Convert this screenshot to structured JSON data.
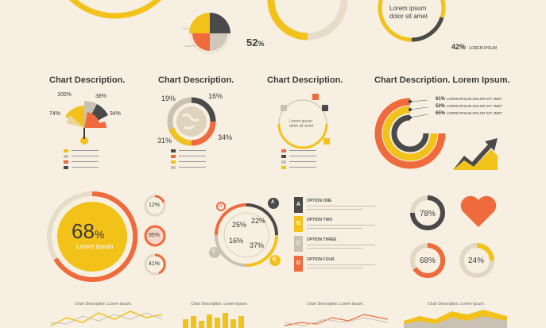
{
  "colors": {
    "yellow": "#f2c21a",
    "orange": "#ef6a3c",
    "grey": "#4a4a4a",
    "lightgrey": "#c9c1b4",
    "cream": "#f6efe2",
    "beige": "#e6d8bf"
  },
  "top": {
    "pct_52": "52",
    "pct_42": "42",
    "lorem_title": "Lorem ipsum",
    "lorem_sub": "dolor sit amet",
    "lorem_label": "LOREM IPSUM",
    "pct_suffix": "%"
  },
  "sections": [
    {
      "title": "Chart Description."
    },
    {
      "title": "Chart Description."
    },
    {
      "title": "Chart Description."
    },
    {
      "title": "Chart Description. Lorem Ipsum."
    }
  ],
  "fan": {
    "labels": [
      "100%",
      "38%",
      "74%",
      "34%"
    ]
  },
  "donut2": {
    "labels": [
      "19%",
      "16%",
      "31%",
      "34%"
    ]
  },
  "card3": {
    "line1": "Lorem ipsum",
    "line2": "dolor sit amet"
  },
  "rings4": {
    "labels": [
      "61%",
      "52%",
      "65%"
    ],
    "text": "LOREM IPSUM DOLOR SIT AMET"
  },
  "big": {
    "value": "68",
    "suffix": "%",
    "sub": "Lorem ipsum"
  },
  "smalls": [
    "12%",
    "95%",
    "41%"
  ],
  "wheel": {
    "labels": [
      "25%",
      "22%",
      "16%",
      "37%"
    ],
    "letters": [
      "A",
      "B",
      "C",
      "D"
    ]
  },
  "options": [
    {
      "letter": "A",
      "title": "OPTION ONE"
    },
    {
      "letter": "B",
      "title": "OPTION TWO"
    },
    {
      "letter": "C",
      "title": "OPTION THREE"
    },
    {
      "letter": "D",
      "title": "OPTION FOUR"
    }
  ],
  "gauges": [
    "78%",
    "68%",
    "24%"
  ],
  "bottom": {
    "titles": [
      "Chart Description. Lorem Ipsum.",
      "Chart Description. Lorem Ipsum.",
      "Chart Description. Lorem Ipsum.",
      "Chart Description. Lorem Ipsum."
    ]
  }
}
